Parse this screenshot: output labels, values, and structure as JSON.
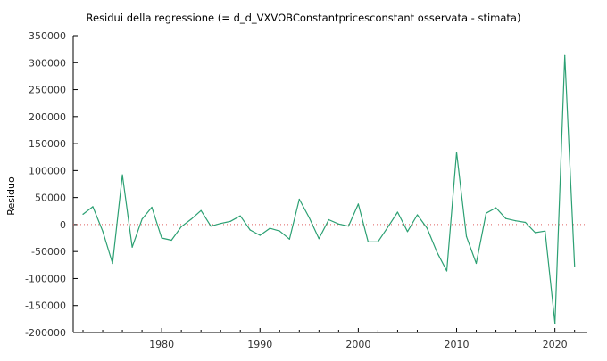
{
  "chart_data": {
    "type": "line",
    "title": "Residui della regressione (= d_d_VXVOBConstantpricesconstant osservata - stimata)",
    "xlabel": "",
    "ylabel": "Residuo",
    "xlim": [
      1971,
      2023.3
    ],
    "ylim": [
      -200000,
      350000
    ],
    "x_ticks": [
      1980,
      1990,
      2000,
      2010,
      2020
    ],
    "y_ticks": [
      -200000,
      -150000,
      -100000,
      -50000,
      0,
      50000,
      100000,
      150000,
      200000,
      250000,
      300000,
      350000
    ],
    "grid": false,
    "zero_line": true,
    "series": [
      {
        "color": "#2ca073",
        "x": [
          1972,
          1973,
          1974,
          1975,
          1976,
          1977,
          1978,
          1979,
          1980,
          1981,
          1982,
          1983,
          1984,
          1985,
          1986,
          1987,
          1988,
          1989,
          1990,
          1991,
          1992,
          1993,
          1994,
          1995,
          1996,
          1997,
          1998,
          1999,
          2000,
          2001,
          2002,
          2003,
          2004,
          2005,
          2006,
          2007,
          2008,
          2009,
          2010,
          2011,
          2012,
          2013,
          2014,
          2015,
          2016,
          2017,
          2018,
          2019,
          2020,
          2021,
          2022
        ],
        "y": [
          19000,
          33000,
          -12000,
          -72000,
          92000,
          -42000,
          10000,
          32000,
          -25000,
          -29000,
          -4000,
          10000,
          26000,
          -3000,
          2000,
          6000,
          16000,
          -10000,
          -20000,
          -7000,
          -12000,
          -27000,
          47000,
          13000,
          -26000,
          9000,
          1000,
          -3000,
          38000,
          -32000,
          -32000,
          -5000,
          23000,
          -13000,
          18000,
          -7000,
          -51000,
          -86000,
          134000,
          -22000,
          -72000,
          21000,
          31000,
          11000,
          7000,
          4000,
          -15000,
          -12000,
          -183000,
          313000,
          -77000
        ]
      }
    ]
  }
}
